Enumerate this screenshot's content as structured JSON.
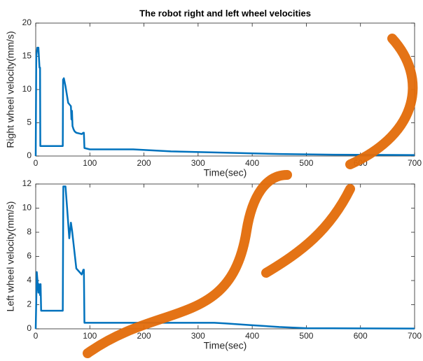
{
  "chart_data": [
    {
      "type": "line",
      "title": "The robot right and left wheel velocities",
      "x_label": "Time(sec)",
      "y_label": "Right wheel velocity(mm/s)",
      "x": [
        0,
        1,
        3,
        5,
        7,
        8,
        8.5,
        50,
        50.5,
        52,
        55,
        60,
        65,
        66,
        67,
        68,
        70,
        72,
        75,
        80,
        85,
        88,
        89,
        90,
        100,
        180,
        250,
        350,
        450,
        550,
        700
      ],
      "series": [
        {
          "name": "Right wheel velocity",
          "color": "#0072bd",
          "values": [
            0,
            15,
            16.3,
            16.3,
            13.3,
            13.3,
            1.5,
            1.5,
            11.5,
            11.7,
            10.5,
            8,
            7.5,
            5.5,
            6.8,
            4.5,
            4,
            3.7,
            3.5,
            3.4,
            3.3,
            3.5,
            3.5,
            1.2,
            1.0,
            1.0,
            0.7,
            0.5,
            0.3,
            0.2,
            0.15
          ]
        }
      ],
      "xlim": [
        0,
        700
      ],
      "xticks": [
        0,
        100,
        200,
        300,
        400,
        500,
        600,
        700
      ],
      "ylim": [
        0,
        20
      ],
      "yticks": [
        0,
        5,
        10,
        15,
        20
      ]
    },
    {
      "type": "line",
      "x_label": "Time(sec)",
      "y_label": "Left wheel velocity(mm/s)",
      "x": [
        0,
        2,
        5,
        6,
        8,
        9,
        10,
        50,
        51,
        55,
        58,
        62,
        65,
        67,
        70,
        75,
        85,
        88,
        89,
        90,
        330,
        350,
        400,
        450,
        500,
        700
      ],
      "series": [
        {
          "name": "Left wheel velocity",
          "color": "#0072bd",
          "values": [
            0,
            4.7,
            3,
            3.7,
            2.8,
            3.7,
            1.5,
            1.5,
            11.8,
            11.8,
            10,
            7.5,
            8.8,
            8.2,
            7,
            5,
            4.5,
            4.9,
            4.9,
            0.5,
            0.5,
            0.45,
            0.3,
            0.15,
            0.05,
            0.02
          ]
        }
      ],
      "xlim": [
        0,
        700
      ],
      "xticks": [
        0,
        100,
        200,
        300,
        400,
        500,
        600,
        700
      ],
      "ylim": [
        0,
        12
      ],
      "yticks": [
        0,
        2,
        4,
        6,
        8,
        10,
        12
      ]
    }
  ]
}
